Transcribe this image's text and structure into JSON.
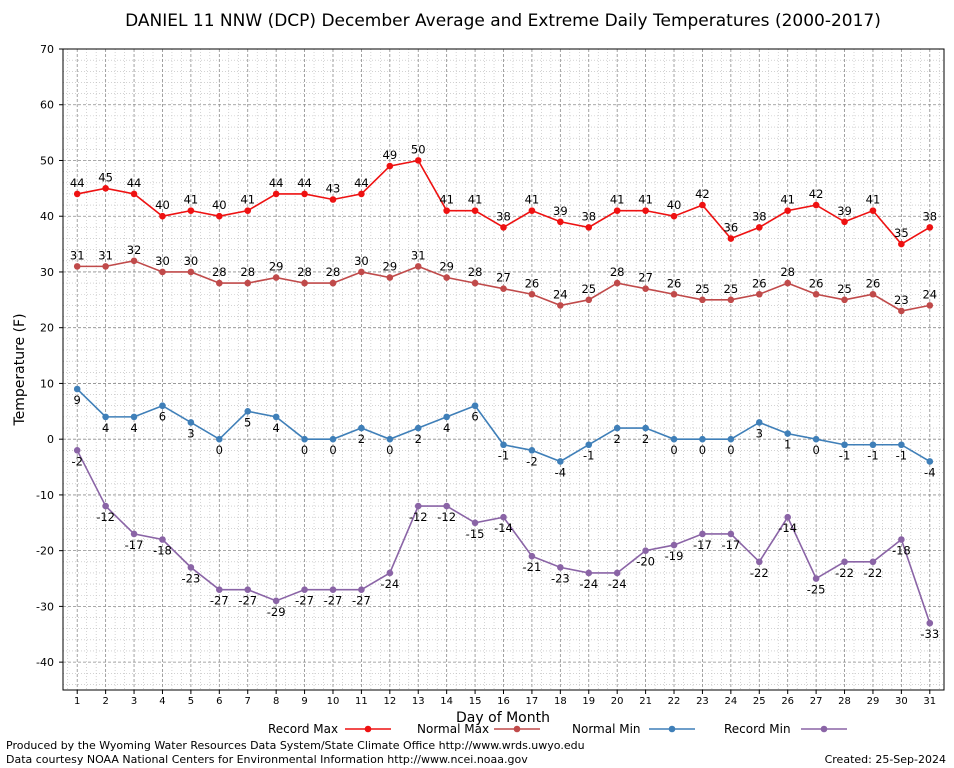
{
  "chart_data": {
    "type": "line",
    "title": "DANIEL 11 NNW (DCP) December Average and Extreme Daily Temperatures (2000-2017)",
    "xlabel": "Day of Month",
    "ylabel": "Temperature (F)",
    "ylim": [
      -45,
      70
    ],
    "yticks": [
      -40,
      -30,
      -20,
      -10,
      0,
      10,
      20,
      30,
      40,
      50,
      60,
      70
    ],
    "grid": true,
    "legend_position": "bottom",
    "x": [
      1,
      2,
      3,
      4,
      5,
      6,
      7,
      8,
      9,
      10,
      11,
      12,
      13,
      14,
      15,
      16,
      17,
      18,
      19,
      20,
      21,
      22,
      23,
      24,
      25,
      26,
      27,
      28,
      29,
      30,
      31
    ],
    "series": [
      {
        "name": "Record Max",
        "color": "#ee1111",
        "label_side": "above",
        "values": [
          44,
          45,
          44,
          40,
          41,
          40,
          41,
          44,
          44,
          43,
          44,
          49,
          50,
          41,
          41,
          38,
          41,
          39,
          38,
          41,
          41,
          40,
          42,
          36,
          38,
          41,
          42,
          39,
          41,
          35,
          38
        ]
      },
      {
        "name": "Normal Max",
        "color": "#c04a4a",
        "label_side": "above",
        "values": [
          31,
          31,
          32,
          30,
          30,
          28,
          28,
          29,
          28,
          28,
          30,
          29,
          31,
          29,
          28,
          27,
          26,
          24,
          25,
          28,
          27,
          26,
          25,
          25,
          26,
          28,
          26,
          25,
          26,
          23,
          24
        ]
      },
      {
        "name": "Normal Min",
        "color": "#3f7fb8",
        "label_side": "below",
        "values": [
          9,
          4,
          4,
          6,
          3,
          0,
          5,
          4,
          0,
          0,
          2,
          0,
          2,
          4,
          6,
          -1,
          -2,
          -4,
          -1,
          2,
          2,
          0,
          0,
          0,
          3,
          1,
          0,
          -1,
          -1,
          -1,
          -4
        ]
      },
      {
        "name": "Record Min",
        "color": "#8a64a6",
        "label_side": "below",
        "values": [
          -2,
          -12,
          -17,
          -18,
          -23,
          -27,
          -27,
          -29,
          -27,
          -27,
          -27,
          -24,
          -12,
          -12,
          -15,
          -14,
          -21,
          -23,
          -24,
          -24,
          -20,
          -19,
          -17,
          -17,
          -22,
          -14,
          -25,
          -22,
          -22,
          -18,
          -33
        ]
      }
    ]
  },
  "footer": {
    "credit_line1": "Produced by the Wyoming Water Resources Data System/State Climate Office http://www.wrds.uwyo.edu",
    "credit_line2": "Data courtesy NOAA National Centers for Environmental Information http://www.ncei.noaa.gov",
    "created": "Created:  25-Sep-2024"
  }
}
